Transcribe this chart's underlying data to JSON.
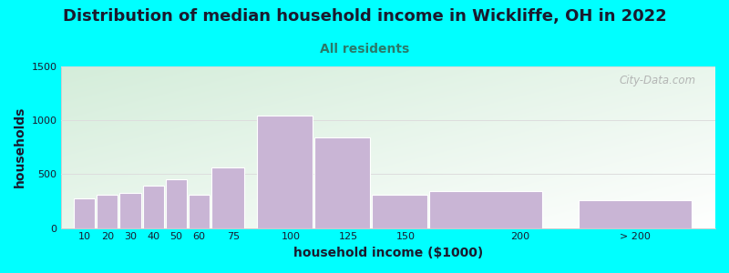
{
  "title": "Distribution of median household income in Wickliffe, OH in 2022",
  "subtitle": "All residents",
  "xlabel": "household income ($1000)",
  "ylabel": "households",
  "bar_values": [
    275,
    305,
    330,
    390,
    455,
    305,
    565,
    1045,
    845,
    305,
    340,
    255
  ],
  "bar_widths": [
    10,
    10,
    10,
    10,
    10,
    10,
    15,
    25,
    25,
    25,
    50,
    50
  ],
  "bar_lefts": [
    5,
    15,
    25,
    35,
    45,
    55,
    65,
    85,
    110,
    135,
    160,
    225
  ],
  "bar_color": "#c9b5d5",
  "bar_edge_color": "#ffffff",
  "ylim": [
    0,
    1500
  ],
  "yticks": [
    0,
    500,
    1000,
    1500
  ],
  "xlim_left": 0,
  "xlim_right": 285,
  "background_color": "#00ffff",
  "grad_color_top_left": "#d4edda",
  "grad_color_bottom_right": "#f8fff8",
  "title_fontsize": 13,
  "title_color": "#1a1a2e",
  "subtitle_fontsize": 10,
  "subtitle_color": "#2a7a6a",
  "axis_label_fontsize": 10,
  "axis_label_color": "#1a1a2e",
  "tick_label_fontsize": 8,
  "watermark_text": "City-Data.com",
  "watermark_color": "#aaaaaa",
  "tick_labels_x": [
    "10",
    "20",
    "30",
    "40",
    "50",
    "60",
    "75",
    "100",
    "125",
    "150",
    "200",
    "> 200"
  ],
  "tick_positions_x": [
    10,
    20,
    30,
    40,
    50,
    60,
    75,
    100,
    125,
    150,
    200,
    250
  ],
  "grid_color": "#dddddd",
  "spine_color": "#cccccc"
}
